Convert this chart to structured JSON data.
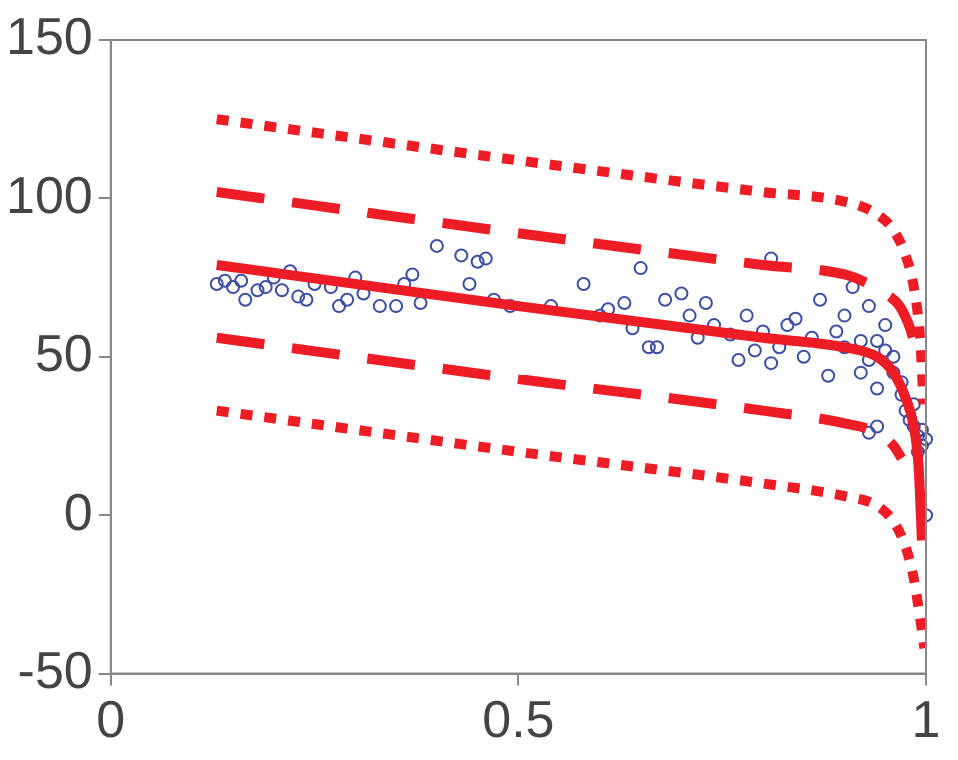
{
  "chart_data": {
    "type": "scatter",
    "xlim": [
      0,
      1
    ],
    "ylim": [
      -50,
      150
    ],
    "xticks": [
      0,
      0.5,
      1
    ],
    "yticks": [
      -50,
      0,
      50,
      100,
      150
    ],
    "grid": false,
    "legend": false,
    "marker": "circle",
    "series": [
      {
        "color": "#3b4ea3",
        "x": [
          0.13,
          0.14,
          0.15,
          0.16,
          0.165,
          0.18,
          0.19,
          0.2,
          0.21,
          0.22,
          0.23,
          0.24,
          0.25,
          0.27,
          0.28,
          0.29,
          0.3,
          0.31,
          0.33,
          0.35,
          0.36,
          0.37,
          0.38,
          0.4,
          0.43,
          0.44,
          0.45,
          0.46,
          0.47,
          0.49,
          0.54,
          0.58,
          0.6,
          0.61,
          0.63,
          0.64,
          0.65,
          0.66,
          0.67,
          0.68,
          0.7,
          0.71,
          0.72,
          0.73,
          0.74,
          0.76,
          0.77,
          0.78,
          0.79,
          0.8,
          0.81,
          0.81,
          0.82,
          0.83,
          0.84,
          0.85,
          0.86,
          0.87,
          0.88,
          0.89,
          0.9,
          0.9,
          0.91,
          0.92,
          0.92,
          0.93,
          0.93,
          0.93,
          0.94,
          0.94,
          0.94,
          0.95,
          0.95,
          0.96,
          0.96,
          0.97,
          0.97,
          0.975,
          0.98,
          0.985,
          0.985,
          0.99,
          0.99,
          0.995,
          0.995,
          1,
          1
        ],
        "values": [
          73,
          74,
          72,
          74,
          68,
          71,
          72,
          75,
          71,
          77,
          69,
          68,
          73,
          72,
          66,
          68,
          75,
          70,
          66,
          66,
          73,
          76,
          67,
          85,
          82,
          73,
          80,
          81,
          68,
          66,
          66,
          73,
          63,
          65,
          67,
          59,
          78,
          53,
          53,
          68,
          70,
          63,
          56,
          67,
          60,
          57,
          49,
          63,
          52,
          58,
          48,
          81,
          53,
          60,
          62,
          50,
          56,
          68,
          44,
          58,
          53,
          63,
          72,
          55,
          45,
          66,
          49,
          26,
          55,
          40,
          28,
          60,
          52,
          50,
          45,
          42,
          38,
          33,
          30,
          35,
          28,
          25,
          20,
          27,
          22,
          24,
          0
        ]
      },
      {
        "type": "line",
        "color": "#ee1c25",
        "line_style": "solid",
        "marker": "none",
        "x": [
          0.13,
          0.5,
          0.8,
          0.9,
          0.94,
          0.96,
          0.975,
          0.985,
          0.991,
          0.995
        ],
        "values": [
          79,
          66,
          56,
          53,
          50,
          45,
          37,
          28,
          15,
          -8
        ]
      },
      {
        "type": "line",
        "color": "#ee1c25",
        "line_style": "dashed",
        "marker": "none",
        "x": [
          0.13,
          0.5,
          0.8,
          0.9,
          0.93,
          0.95,
          0.97,
          0.985,
          0.99
        ],
        "values": [
          102,
          89,
          79,
          76,
          73,
          70,
          65,
          55,
          48
        ]
      },
      {
        "type": "line",
        "color": "#ee1c25",
        "line_style": "dashed",
        "marker": "none",
        "x": [
          0.13,
          0.5,
          0.8,
          0.9,
          0.94,
          0.96,
          0.97
        ],
        "values": [
          56,
          43,
          33,
          29,
          26,
          22,
          18
        ]
      },
      {
        "type": "line",
        "color": "#ee1c25",
        "line_style": "dotted",
        "marker": "none",
        "x": [
          0.13,
          0.5,
          0.8,
          0.9,
          0.94,
          0.96,
          0.975,
          0.985,
          0.993,
          0.997
        ],
        "values": [
          125,
          112,
          102,
          99,
          95,
          90,
          82,
          72,
          55,
          35
        ]
      },
      {
        "type": "line",
        "color": "#ee1c25",
        "line_style": "dotted",
        "marker": "none",
        "x": [
          0.13,
          0.5,
          0.8,
          0.9,
          0.94,
          0.96,
          0.975,
          0.985,
          0.993,
          0.998
        ],
        "values": [
          33,
          20,
          10,
          6,
          3,
          -2,
          -10,
          -20,
          -33,
          -42
        ]
      }
    ]
  }
}
